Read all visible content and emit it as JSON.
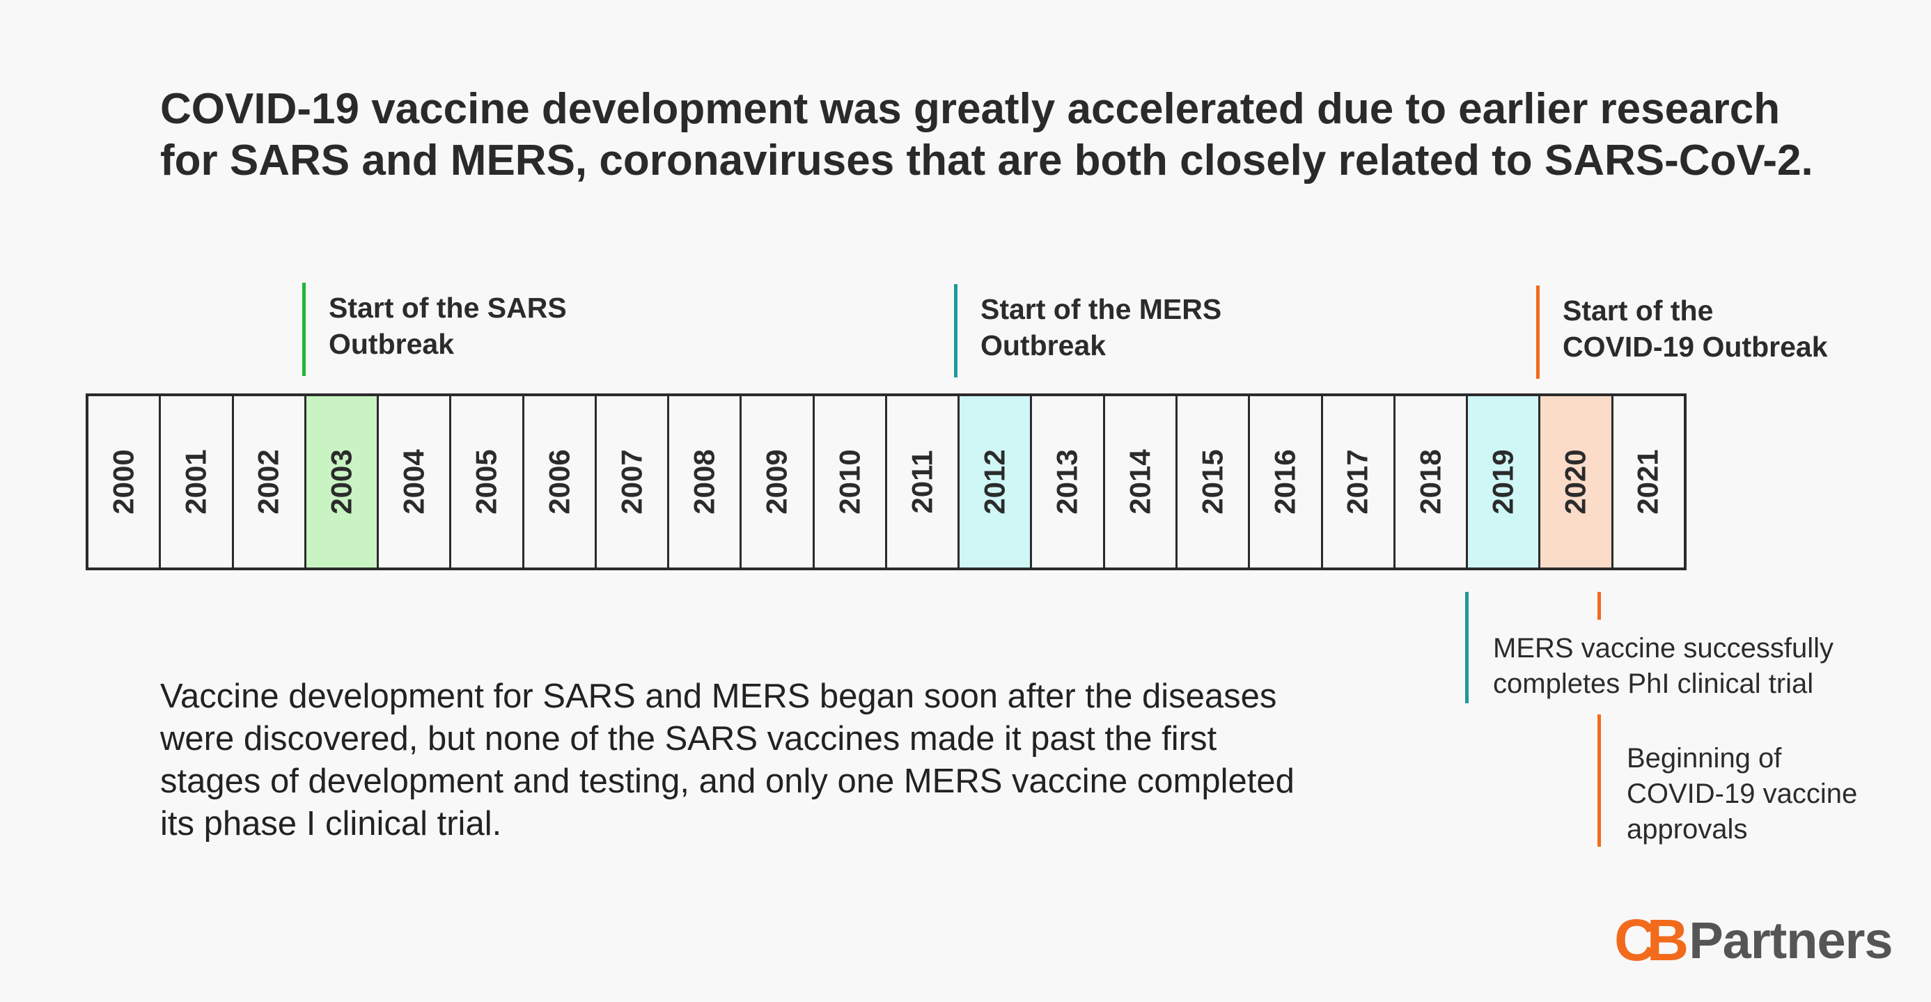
{
  "title_line1": "COVID-19 vaccine development was greatly accelerated due to earlier research",
  "title_line2": "for SARS and MERS, coronaviruses that are both closely related to SARS-CoV-2.",
  "events_top": [
    {
      "line1": "Start of the SARS",
      "line2": "Outbreak",
      "color": "#22b638"
    },
    {
      "line1": "Start of the MERS",
      "line2": "Outbreak",
      "color": "#1e9a9a"
    },
    {
      "line1": "Start of the",
      "line2": "COVID-19 Outbreak",
      "color": "#f26b1d"
    }
  ],
  "years": [
    "2000",
    "2001",
    "2002",
    "2003",
    "2004",
    "2005",
    "2006",
    "2007",
    "2008",
    "2009",
    "2010",
    "2011",
    "2012",
    "2013",
    "2014",
    "2015",
    "2016",
    "2017",
    "2018",
    "2019",
    "2020",
    "2021"
  ],
  "highlights": {
    "sars": "2003",
    "mers": [
      "2012",
      "2019"
    ],
    "covid": "2020"
  },
  "events_bottom": [
    {
      "line1": "MERS vaccine successfully",
      "line2": "completes PhI clinical trial",
      "color": "#1e9a9a"
    },
    {
      "line1": "Beginning of",
      "line2": "COVID-19 vaccine",
      "line3": "approvals",
      "color": "#f26b1d"
    }
  ],
  "description": [
    "Vaccine development for SARS and MERS began soon after the diseases",
    "were discovered, but none of the SARS vaccines made it past the first",
    "stages of development and testing, and only one MERS vaccine completed",
    "its phase I clinical trial."
  ],
  "logo": {
    "mark": "CB",
    "text": "Partners",
    "accent": "#f26b1d",
    "text_color": "#555555"
  }
}
